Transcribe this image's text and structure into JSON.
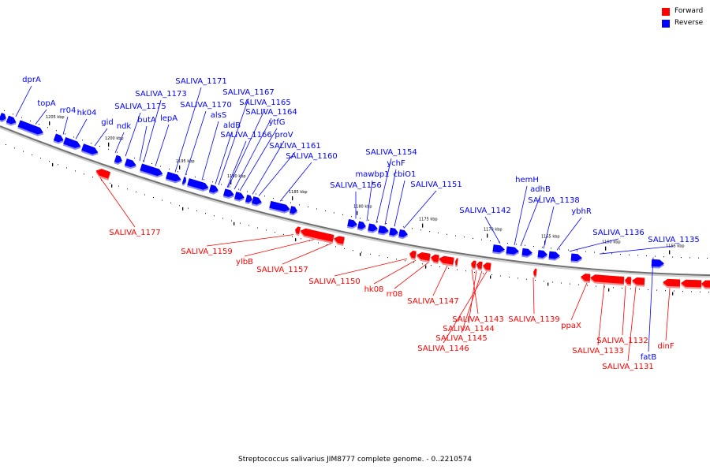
{
  "colors": {
    "forward": "#ff0000",
    "reverse": "#0000ff",
    "backbone": "#707070"
  },
  "legend": [
    {
      "label": "Forward",
      "color": "#ff0000"
    },
    {
      "label": "Reverse",
      "color": "#0000ff"
    }
  ],
  "caption": "Streptococcus salivarius JIM8777 complete genome. - 0..2210574",
  "ticks": [
    "1205 kbp",
    "1200 kbp",
    "1195 kbp",
    "1190 kbp",
    "1185 kbp",
    "1180 kbp",
    "1175 kbp",
    "1170 kbp",
    "1165 kbp",
    "1160 kbp",
    "1155 kbp"
  ],
  "reverse_labels": [
    "dprA",
    "topA",
    "rr04",
    "hk04",
    "gid",
    "ndk",
    "SALIVA_1175",
    "SALIVA_1173",
    "butA",
    "lepA",
    "SALIVA_1171",
    "SALIVA_1170",
    "alsS",
    "aldB",
    "SALIVA_1167",
    "SALIVA_1165",
    "SALIVA_1164",
    "ytfG",
    "SALIVA_1166",
    "proV",
    "SALIVA_1161",
    "SALIVA_1160",
    "SALIVA_1154",
    "ychF",
    "mawbp1",
    "cbiO1",
    "SALIVA_1156",
    "SALIVA_1151",
    "hemH",
    "adhB",
    "SALIVA_1142",
    "SALIVA_1138",
    "ybhR",
    "SALIVA_1136",
    "SALIVA_1135",
    "fatB"
  ],
  "forward_labels": [
    "SALIVA_1177",
    "SALIVA_1159",
    "ylbB",
    "SALIVA_1157",
    "SALIVA_1150",
    "hk08",
    "rr08",
    "SALIVA_1147",
    "SALIVA_1143",
    "SALIVA_1144",
    "SALIVA_1145",
    "SALIVA_1146",
    "SALIVA_1139",
    "ppaX",
    "SALIVA_1132",
    "SALIVA_1133",
    "SALIVA_1131",
    "dinF"
  ]
}
